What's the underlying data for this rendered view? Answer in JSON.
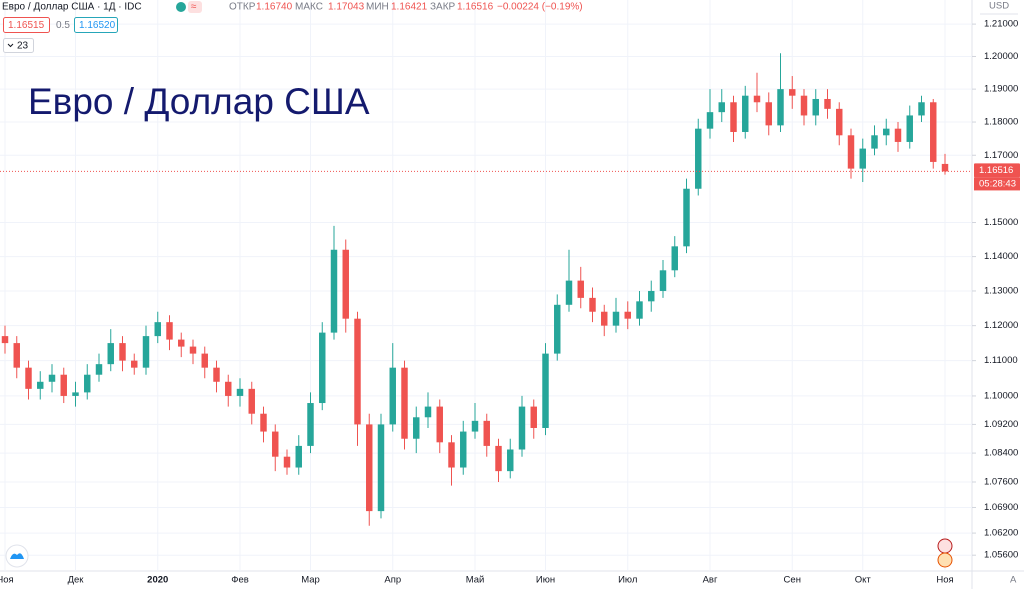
{
  "chart_data": {
    "type": "candlestick",
    "title": "Евро / Доллар США",
    "header": {
      "symbol": "Евро / Доллар США · 1Д · IDC",
      "open_label": "ОТКР",
      "open": "1.16740",
      "high_label": "МАКС",
      "high": "1.17043",
      "low_label": "МИН",
      "low": "1.16421",
      "close_label": "ЗАКР",
      "close": "1.16516",
      "change": "−0.00224 (−0.19%)"
    },
    "bid": "1.16515",
    "spread": "0.5",
    "ask": "1.16520",
    "indicators_count": "23",
    "currency": "USD",
    "countdown": "05:28:43",
    "auto_scale_label": "A",
    "last_price": {
      "value": 1.16516,
      "label": "1.16516"
    },
    "log_scale": true,
    "up_color": "#26a69a",
    "down_color": "#ef5350",
    "ylim": [
      1.052,
      1.2175
    ],
    "yticks": [
      {
        "value": 1.21,
        "label": "1.21000"
      },
      {
        "value": 1.2,
        "label": "1.20000"
      },
      {
        "value": 1.19,
        "label": "1.19000"
      },
      {
        "value": 1.18,
        "label": "1.18000"
      },
      {
        "value": 1.17,
        "label": "1.17000"
      },
      {
        "value": 1.15,
        "label": "1.15000"
      },
      {
        "value": 1.14,
        "label": "1.14000"
      },
      {
        "value": 1.13,
        "label": "1.13000"
      },
      {
        "value": 1.12,
        "label": "1.12000"
      },
      {
        "value": 1.11,
        "label": "1.11000"
      },
      {
        "value": 1.1,
        "label": "1.10000"
      },
      {
        "value": 1.092,
        "label": "1.09200"
      },
      {
        "value": 1.084,
        "label": "1.08400"
      },
      {
        "value": 1.076,
        "label": "1.07600"
      },
      {
        "value": 1.069,
        "label": "1.06900"
      },
      {
        "value": 1.062,
        "label": "1.06200"
      },
      {
        "value": 1.056,
        "label": "1.05600"
      }
    ],
    "categories": [
      "Ноя",
      null,
      null,
      null,
      null,
      null,
      "Дек",
      null,
      null,
      null,
      null,
      null,
      null,
      "2020",
      null,
      null,
      null,
      null,
      null,
      null,
      "Фев",
      null,
      null,
      null,
      null,
      null,
      "Мар",
      null,
      null,
      null,
      null,
      null,
      null,
      "Апр",
      null,
      null,
      null,
      null,
      null,
      null,
      "Май",
      null,
      null,
      null,
      null,
      null,
      "Июн",
      null,
      null,
      null,
      null,
      null,
      null,
      "Июл",
      null,
      null,
      null,
      null,
      null,
      null,
      "Авг",
      null,
      null,
      null,
      null,
      null,
      null,
      "Сен",
      null,
      null,
      null,
      null,
      null,
      "Окт",
      null,
      null,
      null,
      null,
      null,
      null,
      "Ноя"
    ],
    "open": [
      1.117,
      1.115,
      1.108,
      1.102,
      1.104,
      1.106,
      1.1,
      1.101,
      1.106,
      1.109,
      1.115,
      1.11,
      1.108,
      1.117,
      1.121,
      1.116,
      1.114,
      1.112,
      1.108,
      1.104,
      1.1,
      1.102,
      1.095,
      1.09,
      1.083,
      1.08,
      1.086,
      1.098,
      1.118,
      1.142,
      1.122,
      1.092,
      1.068,
      1.092,
      1.108,
      1.088,
      1.094,
      1.097,
      1.087,
      1.08,
      1.09,
      1.093,
      1.086,
      1.079,
      1.085,
      1.097,
      1.091,
      1.112,
      1.126,
      1.133,
      1.128,
      1.124,
      1.12,
      1.124,
      1.122,
      1.127,
      1.13,
      1.136,
      1.143,
      1.16,
      1.178,
      1.183,
      1.186,
      1.177,
      1.188,
      1.186,
      1.179,
      1.19,
      1.188,
      1.182,
      1.187,
      1.184,
      1.176,
      1.166,
      1.172,
      1.176,
      1.178,
      1.174,
      1.182,
      1.186,
      1.1674
    ],
    "high": [
      1.12,
      1.117,
      1.11,
      1.107,
      1.109,
      1.108,
      1.104,
      1.109,
      1.112,
      1.119,
      1.117,
      1.112,
      1.12,
      1.124,
      1.123,
      1.118,
      1.116,
      1.114,
      1.11,
      1.106,
      1.105,
      1.104,
      1.097,
      1.092,
      1.085,
      1.089,
      1.101,
      1.121,
      1.149,
      1.145,
      1.124,
      1.095,
      1.095,
      1.115,
      1.11,
      1.097,
      1.101,
      1.099,
      1.089,
      1.093,
      1.098,
      1.095,
      1.088,
      1.088,
      1.1,
      1.099,
      1.115,
      1.129,
      1.142,
      1.137,
      1.131,
      1.126,
      1.128,
      1.127,
      1.13,
      1.133,
      1.139,
      1.146,
      1.163,
      1.181,
      1.19,
      1.19,
      1.188,
      1.191,
      1.195,
      1.189,
      1.201,
      1.194,
      1.19,
      1.19,
      1.19,
      1.186,
      1.178,
      1.175,
      1.179,
      1.181,
      1.18,
      1.185,
      1.188,
      1.187,
      1.17043
    ],
    "low": [
      1.112,
      1.105,
      1.099,
      1.099,
      1.101,
      1.098,
      1.097,
      1.099,
      1.104,
      1.107,
      1.107,
      1.106,
      1.106,
      1.115,
      1.113,
      1.111,
      1.109,
      1.105,
      1.101,
      1.097,
      1.097,
      1.092,
      1.087,
      1.079,
      1.078,
      1.078,
      1.084,
      1.096,
      1.116,
      1.118,
      1.086,
      1.064,
      1.066,
      1.09,
      1.085,
      1.084,
      1.091,
      1.084,
      1.075,
      1.078,
      1.088,
      1.083,
      1.076,
      1.077,
      1.083,
      1.088,
      1.089,
      1.11,
      1.124,
      1.125,
      1.121,
      1.117,
      1.118,
      1.119,
      1.12,
      1.124,
      1.128,
      1.134,
      1.141,
      1.158,
      1.175,
      1.18,
      1.174,
      1.175,
      1.183,
      1.176,
      1.177,
      1.184,
      1.179,
      1.179,
      1.181,
      1.173,
      1.163,
      1.162,
      1.17,
      1.173,
      1.171,
      1.172,
      1.18,
      1.166,
      1.16421
    ],
    "close": [
      1.115,
      1.108,
      1.102,
      1.104,
      1.106,
      1.1,
      1.101,
      1.106,
      1.109,
      1.115,
      1.11,
      1.108,
      1.117,
      1.121,
      1.116,
      1.114,
      1.112,
      1.108,
      1.104,
      1.1,
      1.102,
      1.095,
      1.09,
      1.083,
      1.08,
      1.086,
      1.098,
      1.118,
      1.142,
      1.122,
      1.092,
      1.068,
      1.092,
      1.108,
      1.088,
      1.094,
      1.097,
      1.087,
      1.08,
      1.09,
      1.093,
      1.086,
      1.079,
      1.085,
      1.097,
      1.091,
      1.112,
      1.126,
      1.133,
      1.128,
      1.124,
      1.12,
      1.124,
      1.122,
      1.127,
      1.13,
      1.136,
      1.143,
      1.16,
      1.178,
      1.183,
      1.186,
      1.177,
      1.188,
      1.186,
      1.179,
      1.19,
      1.188,
      1.182,
      1.187,
      1.184,
      1.176,
      1.166,
      1.172,
      1.176,
      1.178,
      1.174,
      1.182,
      1.186,
      1.168,
      1.16516
    ]
  }
}
